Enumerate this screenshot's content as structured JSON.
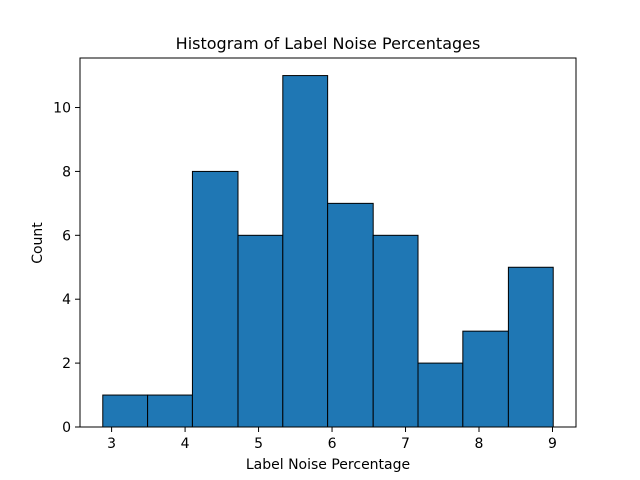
{
  "chart_data": {
    "type": "bar",
    "title": "Histogram of Label Noise Percentages",
    "xlabel": "Label Noise Percentage",
    "ylabel": "Count",
    "bins": [
      {
        "x0": 2.88,
        "x1": 3.49,
        "count": 1
      },
      {
        "x0": 3.49,
        "x1": 4.1,
        "count": 1
      },
      {
        "x0": 4.1,
        "x1": 4.72,
        "count": 8
      },
      {
        "x0": 4.72,
        "x1": 5.33,
        "count": 6
      },
      {
        "x0": 5.33,
        "x1": 5.94,
        "count": 11
      },
      {
        "x0": 5.94,
        "x1": 6.56,
        "count": 7
      },
      {
        "x0": 6.56,
        "x1": 7.17,
        "count": 6
      },
      {
        "x0": 7.17,
        "x1": 7.78,
        "count": 2
      },
      {
        "x0": 7.78,
        "x1": 8.4,
        "count": 3
      },
      {
        "x0": 8.4,
        "x1": 9.01,
        "count": 5
      }
    ],
    "xlim": [
      2.57,
      9.32
    ],
    "ylim": [
      0,
      11.55
    ],
    "xticks": [
      3,
      4,
      5,
      6,
      7,
      8,
      9
    ],
    "yticks": [
      0,
      2,
      4,
      6,
      8,
      10
    ],
    "grid": false,
    "bar_color": "#1f77b4",
    "edge_color": "#000000"
  }
}
